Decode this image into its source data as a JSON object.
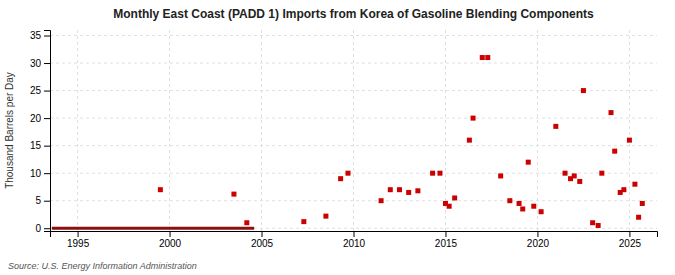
{
  "chart_data": {
    "type": "scatter",
    "title": "Monthly East Coast (PADD 1) Imports from Korea of Gasoline Blending Components",
    "ylabel": "Thousand Barrels per Day",
    "source": "Source: U.S. Energy Information Administration",
    "xlim": [
      1993.5,
      2026.5
    ],
    "ylim": [
      -0.5,
      36
    ],
    "xticks": [
      1995,
      2000,
      2005,
      2010,
      2015,
      2020,
      2025
    ],
    "yticks": [
      0,
      5,
      10,
      15,
      20,
      25,
      30,
      35
    ],
    "grid": true,
    "series": [
      {
        "type": "line",
        "color": "#8b1010",
        "line_style": "solid",
        "x": [
          1993.6,
          2004.6
        ],
        "values": [
          0,
          0
        ]
      },
      {
        "type": "scatter",
        "color": "#cc0000",
        "marker": "square",
        "x": [
          1999.5,
          2003.5,
          2004.2,
          2007.3,
          2008.5,
          2009.3,
          2009.7,
          2011.5,
          2012.0,
          2012.5,
          2013.0,
          2013.5,
          2014.3,
          2014.7,
          2015.0,
          2015.2,
          2015.5,
          2016.3,
          2016.5,
          2017.0,
          2017.3,
          2018.0,
          2018.5,
          2019.0,
          2019.2,
          2019.5,
          2019.8,
          2020.2,
          2021.0,
          2021.5,
          2021.8,
          2022.0,
          2022.3,
          2022.5,
          2023.0,
          2023.3,
          2023.5,
          2024.0,
          2024.2,
          2024.5,
          2024.7,
          2025.0,
          2025.3,
          2025.5,
          2025.7
        ],
        "values": [
          7.0,
          6.2,
          1.0,
          1.2,
          2.2,
          9.0,
          10.0,
          5.0,
          7.0,
          7.0,
          6.5,
          6.8,
          10.0,
          10.0,
          4.5,
          4.0,
          5.5,
          16.0,
          20.0,
          31.0,
          31.0,
          9.5,
          5.0,
          4.5,
          3.5,
          12.0,
          4.0,
          3.0,
          18.5,
          10.0,
          9.0,
          9.5,
          8.5,
          25.0,
          1.0,
          0.5,
          10.0,
          21.0,
          14.0,
          6.5,
          7.0,
          16.0,
          8.0,
          2.0,
          4.5
        ]
      }
    ]
  }
}
